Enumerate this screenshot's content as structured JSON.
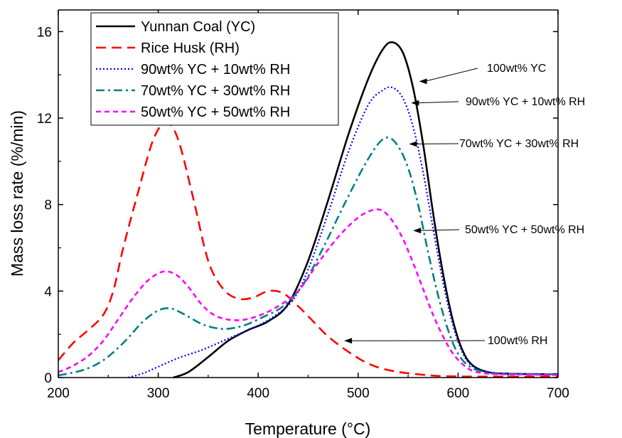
{
  "chart_data": {
    "type": "line",
    "xlabel": "Temperature (°C)",
    "ylabel": "Mass loss rate (%/min)",
    "xlim": [
      200,
      700
    ],
    "ylim": [
      0,
      17
    ],
    "xticks": [
      200,
      300,
      400,
      500,
      600,
      700
    ],
    "yticks": [
      0,
      4,
      8,
      12,
      16
    ],
    "grid": false,
    "legend_position": "top-left",
    "series": [
      {
        "name": "Yunnan Coal (YC)",
        "color": "#000000",
        "dash": "solid",
        "points": [
          [
            315,
            0
          ],
          [
            330,
            0.25
          ],
          [
            350,
            0.95
          ],
          [
            370,
            1.7
          ],
          [
            390,
            2.2
          ],
          [
            410,
            2.6
          ],
          [
            430,
            3.4
          ],
          [
            450,
            5.4
          ],
          [
            470,
            8.2
          ],
          [
            490,
            11.2
          ],
          [
            510,
            13.8
          ],
          [
            525,
            15.2
          ],
          [
            535,
            15.5
          ],
          [
            545,
            15.0
          ],
          [
            555,
            13.4
          ],
          [
            565,
            10.8
          ],
          [
            575,
            7.6
          ],
          [
            585,
            4.8
          ],
          [
            595,
            2.6
          ],
          [
            605,
            1.2
          ],
          [
            615,
            0.55
          ],
          [
            630,
            0.25
          ],
          [
            650,
            0.18
          ],
          [
            700,
            0.15
          ]
        ]
      },
      {
        "name": "Rice Husk (RH)",
        "color": "#ff0000",
        "dash": "long",
        "points": [
          [
            200,
            0.8
          ],
          [
            215,
            1.6
          ],
          [
            230,
            2.2
          ],
          [
            245,
            2.9
          ],
          [
            255,
            4.0
          ],
          [
            265,
            6.0
          ],
          [
            280,
            8.6
          ],
          [
            295,
            11.0
          ],
          [
            308,
            11.8
          ],
          [
            320,
            11.0
          ],
          [
            335,
            8.3
          ],
          [
            350,
            5.4
          ],
          [
            365,
            4.1
          ],
          [
            380,
            3.65
          ],
          [
            395,
            3.7
          ],
          [
            410,
            4.0
          ],
          [
            425,
            3.9
          ],
          [
            440,
            3.3
          ],
          [
            455,
            2.6
          ],
          [
            470,
            1.9
          ],
          [
            490,
            1.2
          ],
          [
            510,
            0.65
          ],
          [
            530,
            0.35
          ],
          [
            560,
            0.15
          ],
          [
            600,
            0.05
          ],
          [
            700,
            0.05
          ]
        ]
      },
      {
        "name": "90wt% YC + 10wt% RH",
        "color": "#0000ff",
        "dash": "dot",
        "points": [
          [
            270,
            0
          ],
          [
            285,
            0.2
          ],
          [
            300,
            0.5
          ],
          [
            320,
            0.9
          ],
          [
            345,
            1.3
          ],
          [
            370,
            1.8
          ],
          [
            395,
            2.3
          ],
          [
            415,
            2.8
          ],
          [
            435,
            3.6
          ],
          [
            450,
            5.0
          ],
          [
            470,
            7.6
          ],
          [
            490,
            10.4
          ],
          [
            510,
            12.6
          ],
          [
            525,
            13.3
          ],
          [
            535,
            13.4
          ],
          [
            545,
            12.9
          ],
          [
            555,
            11.6
          ],
          [
            565,
            9.5
          ],
          [
            575,
            6.9
          ],
          [
            585,
            4.4
          ],
          [
            595,
            2.4
          ],
          [
            605,
            1.1
          ],
          [
            615,
            0.5
          ],
          [
            630,
            0.25
          ],
          [
            650,
            0.18
          ],
          [
            700,
            0.15
          ]
        ]
      },
      {
        "name": "70wt% YC + 30wt% RH",
        "color": "#008080",
        "dash": "dashdot",
        "points": [
          [
            200,
            0.1
          ],
          [
            225,
            0.35
          ],
          [
            245,
            0.8
          ],
          [
            265,
            1.6
          ],
          [
            285,
            2.6
          ],
          [
            300,
            3.1
          ],
          [
            312,
            3.2
          ],
          [
            325,
            2.95
          ],
          [
            345,
            2.45
          ],
          [
            365,
            2.25
          ],
          [
            385,
            2.4
          ],
          [
            405,
            2.8
          ],
          [
            425,
            3.3
          ],
          [
            445,
            4.3
          ],
          [
            465,
            6.0
          ],
          [
            485,
            7.9
          ],
          [
            505,
            9.7
          ],
          [
            520,
            10.8
          ],
          [
            530,
            11.1
          ],
          [
            540,
            10.7
          ],
          [
            550,
            9.7
          ],
          [
            560,
            8.0
          ],
          [
            570,
            5.8
          ],
          [
            580,
            3.8
          ],
          [
            590,
            2.2
          ],
          [
            600,
            1.1
          ],
          [
            612,
            0.5
          ],
          [
            630,
            0.22
          ],
          [
            650,
            0.17
          ],
          [
            700,
            0.15
          ]
        ]
      },
      {
        "name": "50wt% YC + 50wt% RH",
        "color": "#ff00ff",
        "dash": "short",
        "points": [
          [
            200,
            0.25
          ],
          [
            215,
            0.55
          ],
          [
            230,
            1.0
          ],
          [
            245,
            1.7
          ],
          [
            260,
            2.7
          ],
          [
            275,
            3.7
          ],
          [
            290,
            4.5
          ],
          [
            305,
            4.9
          ],
          [
            318,
            4.75
          ],
          [
            330,
            4.2
          ],
          [
            345,
            3.3
          ],
          [
            360,
            2.8
          ],
          [
            380,
            2.65
          ],
          [
            400,
            2.85
          ],
          [
            420,
            3.3
          ],
          [
            440,
            4.0
          ],
          [
            460,
            5.3
          ],
          [
            480,
            6.5
          ],
          [
            500,
            7.4
          ],
          [
            515,
            7.75
          ],
          [
            525,
            7.7
          ],
          [
            535,
            7.2
          ],
          [
            545,
            6.4
          ],
          [
            555,
            5.3
          ],
          [
            565,
            4.1
          ],
          [
            575,
            2.9
          ],
          [
            585,
            1.9
          ],
          [
            595,
            1.1
          ],
          [
            605,
            0.6
          ],
          [
            615,
            0.3
          ],
          [
            630,
            0.18
          ],
          [
            650,
            0.15
          ],
          [
            700,
            0.12
          ]
        ]
      }
    ],
    "annotations": [
      {
        "text": "100wt% YC",
        "target": [
          561,
          13.7
        ]
      },
      {
        "text": "90wt% YC + 10wt% RH",
        "target": [
          553,
          12.7
        ]
      },
      {
        "text": "70wt% YC + 30wt% RH",
        "target": [
          551,
          10.8
        ]
      },
      {
        "text": "50wt% YC + 50wt% RH",
        "target": [
          555,
          6.8
        ]
      },
      {
        "text": "100wt% RH",
        "target": [
          486,
          1.7
        ]
      }
    ]
  }
}
